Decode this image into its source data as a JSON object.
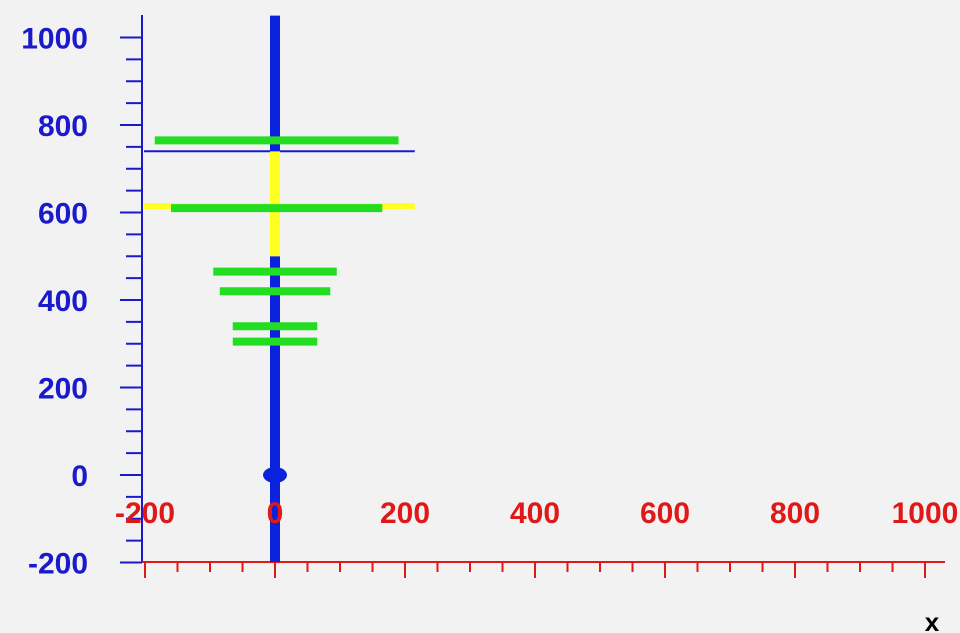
{
  "chart_data": {
    "type": "line",
    "title": "",
    "xlabel": "x",
    "ylabel": "",
    "xlim": [
      -200,
      1000
    ],
    "ylim": [
      -200,
      1000
    ],
    "xticks": [
      "-200",
      "0",
      "200",
      "400",
      "600",
      "800",
      "1000"
    ],
    "yticks": [
      "-200",
      "0",
      "200",
      "400",
      "600",
      "800",
      "1000"
    ],
    "x_tick_values": [
      -200,
      0,
      200,
      400,
      600,
      800,
      1000
    ],
    "y_tick_values": [
      -200,
      0,
      200,
      400,
      600,
      800,
      1000
    ],
    "grid": false,
    "legend": "none",
    "colors": {
      "x_axis": "#e01818",
      "y_axis": "#1a1acc",
      "stem": "#0a22dd",
      "stem_upper": "#ffff22",
      "branches": "#22dd22",
      "reference_line": "#1a1acc",
      "reference_line_yellow": "#ffff22"
    },
    "stem": {
      "x": 0,
      "segments": [
        {
          "y_from": -200,
          "y_to": 500,
          "color": "stem"
        },
        {
          "y_from": 500,
          "y_to": 740,
          "color": "stem_upper"
        },
        {
          "y_from": 740,
          "y_to": 1050,
          "color": "stem"
        }
      ],
      "marker": {
        "x": 0,
        "y": 0
      }
    },
    "reference_lines": [
      {
        "y": 740,
        "x_from": -200,
        "x_to": 215,
        "color": "reference_line"
      },
      {
        "y": 615,
        "x_from": -200,
        "x_to": 215,
        "color": "reference_line_yellow"
      }
    ],
    "branches": [
      {
        "y": 765,
        "x_from": -185,
        "x_to": 190
      },
      {
        "y": 610,
        "x_from": -160,
        "x_to": 165
      },
      {
        "y": 465,
        "x_from": -95,
        "x_to": 95
      },
      {
        "y": 420,
        "x_from": -85,
        "x_to": 85
      },
      {
        "y": 340,
        "x_from": -65,
        "x_to": 65
      },
      {
        "y": 305,
        "x_from": -65,
        "x_to": 65
      }
    ]
  }
}
